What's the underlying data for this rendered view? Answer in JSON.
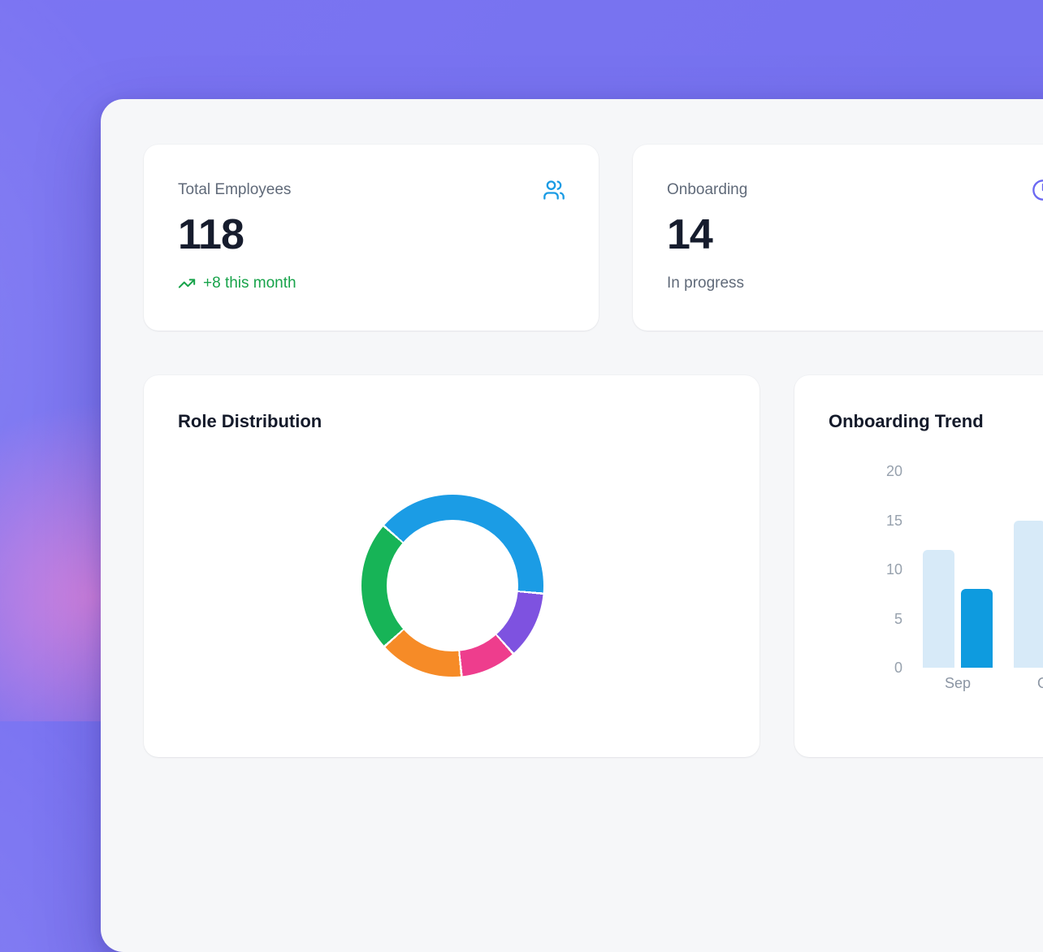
{
  "theme": {
    "background_purple": "#7874f2",
    "background_pink_glow": "#ef87d8",
    "panel_bg": "#f6f7f9",
    "card_bg": "#ffffff",
    "icon_blue": "#1a9be4",
    "icon_indigo": "#6b68f2",
    "positive_green": "#17a34a",
    "label_gray": "#606a79",
    "value_dark": "#161c2d",
    "tick_gray": "#97a1ad",
    "axis_label_gray": "#8b95a3"
  },
  "stats": [
    {
      "label": "Total Employees",
      "value": "118",
      "trend": "+8 this month",
      "icon": "users-icon"
    },
    {
      "label": "Onboarding",
      "value": "14",
      "subtext": "In progress",
      "icon": "clock-icon"
    }
  ],
  "chart_data": [
    {
      "type": "pie",
      "variant": "donut",
      "title": "Role Distribution",
      "legend": "none",
      "labels_visible": false,
      "start_angle_deg": -49,
      "cutout_percent": 72,
      "segments": [
        {
          "name": "segment-1",
          "color": "#1b9ce5",
          "percent": 40
        },
        {
          "name": "segment-2",
          "color": "#7e52e0",
          "percent": 12
        },
        {
          "name": "segment-3",
          "color": "#ee3d8d",
          "percent": 10
        },
        {
          "name": "segment-4",
          "color": "#f68b27",
          "percent": 15
        },
        {
          "name": "segment-5",
          "color": "#17b457",
          "percent": 23
        }
      ]
    },
    {
      "type": "bar",
      "title": "Onboarding Trend",
      "legend": "none",
      "grid": false,
      "categories": [
        "Sep",
        "Oct"
      ],
      "series": [
        {
          "name": "light",
          "color": "#d7eaf8",
          "values": [
            12,
            15
          ]
        },
        {
          "name": "dark",
          "color": "#0e9bdf",
          "values": [
            8,
            null
          ]
        }
      ],
      "ylim": [
        0,
        20
      ],
      "yticks": [
        20,
        15,
        10,
        5,
        0
      ],
      "xlabel": "",
      "ylabel": ""
    }
  ]
}
